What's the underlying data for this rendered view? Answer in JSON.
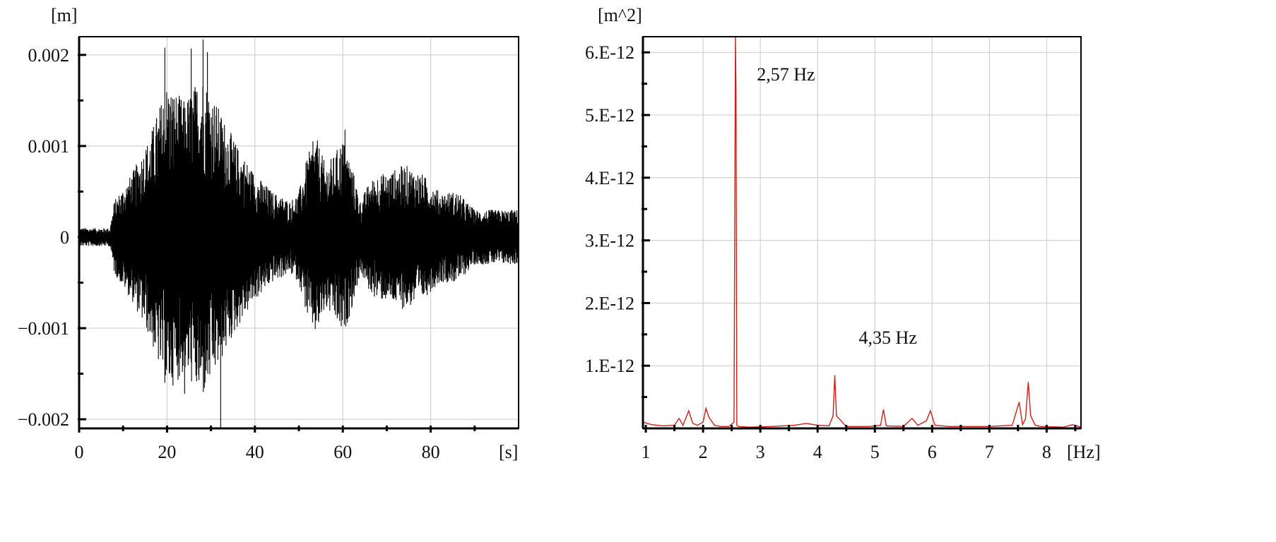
{
  "chart_data": [
    {
      "type": "line",
      "xlabel": "[s]",
      "ylabel": "[m]",
      "xlim": [
        0,
        100
      ],
      "ylim": [
        -0.0021,
        0.0022
      ],
      "x_ticks": [
        0,
        20,
        40,
        60,
        80
      ],
      "x_tick_labels": [
        "0",
        "20",
        "40",
        "60",
        "80"
      ],
      "y_ticks": [
        0.002,
        0.001,
        0,
        -0.001,
        -0.002
      ],
      "y_tick_labels": [
        "0.002",
        "0.001",
        "0",
        "−0.001",
        "−0.002"
      ],
      "grid": true,
      "color": "#000000",
      "envelope": {
        "t": [
          0,
          7,
          8,
          12,
          16,
          20,
          24,
          28,
          32,
          36,
          40,
          44,
          48,
          50,
          52,
          54,
          56,
          58,
          60,
          62,
          64,
          66,
          68,
          70,
          74,
          78,
          82,
          86,
          90,
          94,
          100
        ],
        "amplitude": [
          0.0001,
          0.0001,
          0.0004,
          0.0007,
          0.0011,
          0.0017,
          0.0015,
          0.0018,
          0.0014,
          0.001,
          0.0007,
          0.0005,
          0.0004,
          0.0005,
          0.0009,
          0.0011,
          0.0008,
          0.0009,
          0.0011,
          0.0008,
          0.0004,
          0.0006,
          0.0007,
          0.0007,
          0.0008,
          0.0007,
          0.0005,
          0.0005,
          0.0003,
          0.0003,
          0.0003
        ]
      },
      "peaks": [
        {
          "t": 19.5,
          "y": 0.00208
        },
        {
          "t": 25.5,
          "y": 0.00207
        },
        {
          "t": 28.2,
          "y": 0.00217
        },
        {
          "t": 29.2,
          "y": 0.00203
        },
        {
          "t": 24.0,
          "y": -0.00172
        },
        {
          "t": 32.2,
          "y": -0.00209
        },
        {
          "t": 60.5,
          "y": 0.00118
        },
        {
          "t": 53.2,
          "y": 0.00105
        }
      ]
    },
    {
      "type": "line",
      "xlabel": "[Hz]",
      "ylabel": "[m^2]",
      "xlim": [
        0.95,
        8.6
      ],
      "ylim": [
        0,
        6.25e-12
      ],
      "x_ticks": [
        1,
        2,
        3,
        4,
        5,
        6,
        7,
        8
      ],
      "x_tick_labels": [
        "1",
        "2",
        "3",
        "4",
        "5",
        "6",
        "7",
        "8"
      ],
      "y_ticks": [
        1e-12,
        2e-12,
        3e-12,
        4e-12,
        5e-12,
        6e-12
      ],
      "y_tick_labels": [
        "1.E-12",
        "2.E-12",
        "3.E-12",
        "4.E-12",
        "5.E-12",
        "6.E-12"
      ],
      "grid": true,
      "color": "#cc1f1a",
      "spectrum": {
        "freq": [
          0.95,
          1.1,
          1.3,
          1.5,
          1.58,
          1.65,
          1.75,
          1.82,
          1.9,
          2.0,
          2.05,
          2.1,
          2.2,
          2.3,
          2.45,
          2.54,
          2.565,
          2.575,
          2.59,
          2.62,
          2.8,
          3.2,
          3.6,
          3.8,
          4.0,
          4.2,
          4.27,
          4.3,
          4.33,
          4.5,
          4.9,
          5.1,
          5.15,
          5.2,
          5.5,
          5.65,
          5.75,
          5.9,
          5.97,
          6.05,
          6.3,
          6.6,
          7.0,
          7.4,
          7.52,
          7.58,
          7.63,
          7.68,
          7.72,
          7.8,
          7.9,
          8.3,
          8.45,
          8.6
        ],
        "power": [
          1e-13,
          6e-14,
          4e-14,
          5e-14,
          1.6e-13,
          5e-14,
          2.8e-13,
          8e-14,
          5e-14,
          1e-13,
          3.2e-13,
          1.8e-13,
          5e-14,
          3e-14,
          3e-14,
          1e-13,
          6.25e-12,
          5.4e-12,
          5e-14,
          3e-14,
          2e-14,
          3e-14,
          5e-14,
          8e-14,
          5e-14,
          4e-14,
          2e-13,
          8.5e-13,
          2e-13,
          3e-14,
          3e-14,
          5e-14,
          3e-13,
          4e-14,
          3e-14,
          1.6e-13,
          5e-14,
          1.2e-13,
          2.8e-13,
          5e-14,
          3e-14,
          3e-14,
          3e-14,
          5e-14,
          4.2e-13,
          6e-14,
          1.5e-13,
          7.4e-13,
          2e-13,
          5e-14,
          3e-14,
          2e-14,
          6e-14,
          2e-14
        ]
      },
      "annotations": [
        {
          "text": "2,57 Hz",
          "x": 2.57,
          "y": 5.55e-12
        },
        {
          "text": "4,35 Hz",
          "x": 4.35,
          "y": 1.35e-12
        }
      ]
    }
  ]
}
